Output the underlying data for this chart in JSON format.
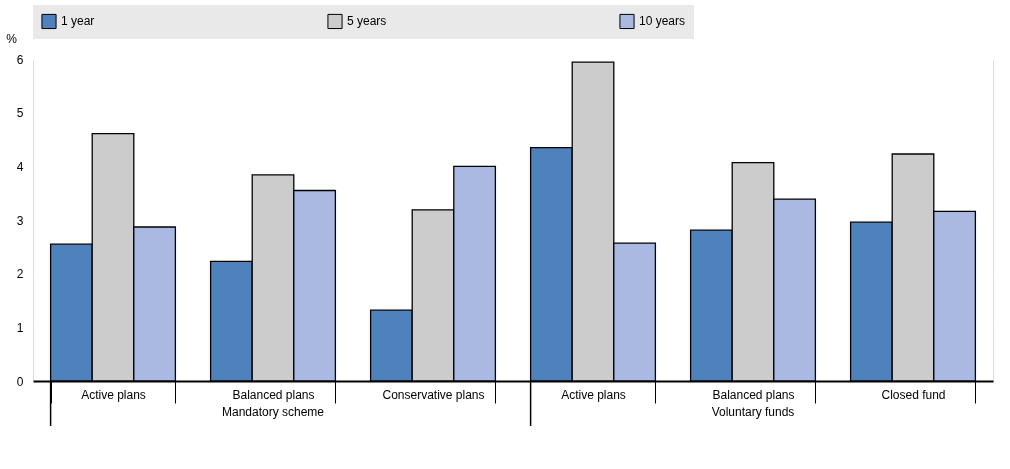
{
  "chart_data": {
    "type": "bar",
    "ylabel": "%",
    "categories": [
      "Active plans",
      "Balanced plans",
      "Conservative plans",
      "Active plans",
      "Balanced plans",
      "Closed fund"
    ],
    "series": [
      {
        "name": "1 year",
        "color": "#4f81bd",
        "values": [
          2.55,
          2.23,
          1.32,
          4.35,
          2.81,
          2.96
        ]
      },
      {
        "name": "5 years",
        "color": "#cccccc",
        "values": [
          4.61,
          3.84,
          3.19,
          5.94,
          4.07,
          4.23
        ]
      },
      {
        "name": "10 years",
        "color": "#a9b9e1",
        "values": [
          2.87,
          3.55,
          4.0,
          2.57,
          3.39,
          3.16
        ]
      }
    ],
    "annotations": [
      "Mandatory scheme",
      "Voluntary funds"
    ],
    "ylim": [
      0,
      6
    ],
    "yticks": [
      0,
      1,
      2,
      3,
      4,
      5,
      6
    ],
    "grid": "y",
    "legend": "top"
  }
}
